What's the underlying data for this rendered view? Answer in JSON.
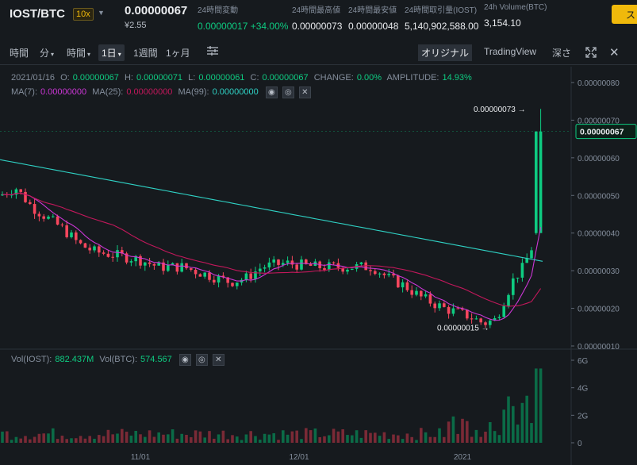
{
  "header": {
    "pair": "IOST/BTC",
    "leverage": "10x",
    "last_price": "0.00000067",
    "fiat_price": "¥2.55",
    "stats": [
      {
        "label": "24時間変動",
        "value": "0.00000017 +34.00%",
        "color": "green"
      },
      {
        "label": "24時間最高値",
        "value": "0.00000073",
        "color": "white"
      },
      {
        "label": "24時間最安値",
        "value": "0.00000048",
        "color": "white"
      },
      {
        "label": "24時間取引量(IOST)",
        "value": "5,140,902,588.00",
        "color": "white"
      },
      {
        "label": "24h Volume(BTC)",
        "value": "3,154.10",
        "color": "white"
      }
    ],
    "action_button": "ス"
  },
  "toolbar": {
    "time_label": "時間",
    "minutes_label": "分",
    "hours_label": "時間",
    "day_label": "1日",
    "week_label": "1週間",
    "month_label": "1ヶ月",
    "original_label": "オリジナル",
    "tradingview_label": "TradingView",
    "depth_label": "深さ"
  },
  "legend": {
    "date": "2021/01/16",
    "o_label": "O:",
    "o": "0.00000067",
    "h_label": "H:",
    "h": "0.00000071",
    "l_label": "L:",
    "l": "0.00000061",
    "c_label": "C:",
    "c": "0.00000067",
    "change_label": "CHANGE:",
    "change": "0.00%",
    "amp_label": "AMPLITUDE:",
    "amp": "14.93%",
    "ma7_label": "MA(7):",
    "ma7": "0.00000000",
    "ma25_label": "MA(25):",
    "ma25": "0.00000000",
    "ma99_label": "MA(99):",
    "ma99": "0.00000000",
    "vol_iost_label": "Vol(IOST):",
    "vol_iost": "882.437M",
    "vol_btc_label": "Vol(BTC):",
    "vol_btc": "574.567"
  },
  "chart_data": {
    "type": "candlestick",
    "price_axis": [
      "0.00000080",
      "0.00000070",
      "0.00000060",
      "0.00000050",
      "0.00000040",
      "0.00000030",
      "0.00000020",
      "0.00000010"
    ],
    "price_range": [
      1e-07,
      8e-07
    ],
    "volume_axis": [
      "6G",
      "4G",
      "2G",
      "0"
    ],
    "x_labels": [
      "11/01",
      "12/01",
      "2021"
    ],
    "current_price_tag": "0.00000067",
    "high_annotation": "0.00000073",
    "low_annotation": "0.00000015",
    "colors": {
      "up": "#0ecb81",
      "down": "#f6465d",
      "ma7": "#cc36d6",
      "ma25": "#c2185b",
      "ma99": "#2fd1c4"
    }
  }
}
